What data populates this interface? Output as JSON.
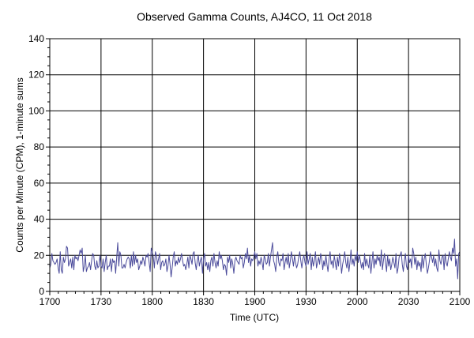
{
  "chart_data": {
    "type": "line",
    "title": "Observed Gamma Counts, AJ4CO, 11 Oct 2018",
    "xlabel": "Time (UTC)",
    "ylabel": "Counts per Minute (CPM), 1-minute sums",
    "x_tick_labels": [
      "1700",
      "1730",
      "1800",
      "1830",
      "1900",
      "1930",
      "2000",
      "2030",
      "2100"
    ],
    "y_ticks": [
      0,
      20,
      40,
      60,
      80,
      100,
      120,
      140
    ],
    "xlim": [
      "17:00",
      "21:00"
    ],
    "ylim": [
      0,
      140
    ],
    "grid": true,
    "x_resolution_minutes": 1,
    "series": [
      {
        "color": "#4b4b9b",
        "values": [
          13,
          15,
          21,
          17,
          16,
          15,
          16,
          18,
          13,
          10,
          22,
          12,
          10,
          19,
          16,
          18,
          25,
          24,
          14,
          16,
          18,
          13,
          19,
          12,
          20,
          18,
          19,
          17,
          20,
          23,
          21,
          24,
          11,
          14,
          20,
          11,
          13,
          14,
          16,
          12,
          17,
          21,
          20,
          14,
          12,
          17,
          13,
          14,
          20,
          14,
          13,
          18,
          11,
          16,
          20,
          12,
          14,
          14,
          18,
          11,
          18,
          16,
          17,
          10,
          19,
          27,
          14,
          22,
          20,
          13,
          13,
          15,
          13,
          16,
          18,
          19,
          18,
          13,
          20,
          14,
          22,
          15,
          20,
          16,
          18,
          12,
          14,
          17,
          15,
          19,
          17,
          14,
          20,
          19,
          21,
          16,
          11,
          24,
          22,
          19,
          13,
          22,
          20,
          15,
          18,
          21,
          12,
          16,
          17,
          14,
          15,
          18,
          11,
          14,
          20,
          15,
          8,
          13,
          19,
          22,
          14,
          17,
          15,
          19,
          16,
          18,
          21,
          17,
          14,
          15,
          12,
          15,
          19,
          13,
          20,
          18,
          15,
          21,
          22,
          16,
          12,
          17,
          20,
          14,
          17,
          19,
          10,
          18,
          21,
          14,
          16,
          12,
          16,
          11,
          17,
          19,
          14,
          21,
          16,
          13,
          17,
          14,
          22,
          18,
          20,
          17,
          12,
          15,
          14,
          9,
          19,
          16,
          20,
          13,
          18,
          15,
          10,
          17,
          19,
          17,
          16,
          15,
          20,
          18,
          19,
          13,
          16,
          21,
          18,
          24,
          16,
          20,
          14,
          18,
          17,
          19,
          22,
          18,
          21,
          14,
          17,
          15,
          19,
          16,
          12,
          20,
          18,
          15,
          16,
          21,
          14,
          19,
          23,
          27,
          17,
          15,
          11,
          19,
          22,
          16,
          14,
          18,
          17,
          21,
          12,
          16,
          19,
          15,
          21,
          13,
          17,
          22,
          18,
          14,
          20,
          16,
          13,
          15,
          19,
          22,
          17,
          13,
          18,
          20,
          16,
          14,
          22,
          15,
          18,
          21,
          12,
          19,
          14,
          17,
          22,
          13,
          16,
          19,
          15,
          21,
          18,
          12,
          17,
          14,
          20,
          15,
          11,
          18,
          22,
          15,
          17,
          13,
          20,
          16,
          12,
          19,
          14,
          21,
          17,
          10,
          15,
          18,
          22,
          16,
          13,
          19,
          11,
          16,
          23,
          15,
          18,
          14,
          20,
          17,
          22,
          16,
          20,
          17,
          13,
          16,
          12,
          21,
          14,
          18,
          15,
          13,
          20,
          10,
          16,
          22,
          13,
          18,
          15,
          20,
          17,
          19,
          14,
          23,
          12,
          17,
          21,
          16,
          11,
          20,
          14,
          18,
          12,
          15,
          19,
          16,
          13,
          21,
          10,
          13,
          19,
          20,
          22,
          15,
          11,
          17,
          21,
          14,
          12,
          20,
          16,
          18,
          13,
          24,
          21,
          15,
          19,
          12,
          17,
          14,
          16,
          11,
          20,
          13,
          18,
          21,
          15,
          10,
          13,
          17,
          22,
          19,
          16,
          20,
          14,
          18,
          13,
          11,
          23,
          17,
          15,
          19,
          20,
          12,
          21,
          16,
          14,
          18,
          22,
          19,
          17,
          24,
          21,
          29,
          14,
          18,
          7,
          21,
          22
        ]
      }
    ]
  }
}
